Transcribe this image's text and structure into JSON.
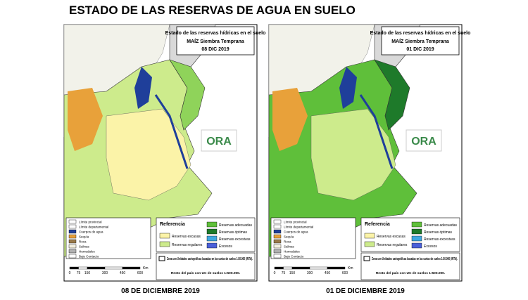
{
  "title": "ESTADO DE LAS RESERVAS DE AGUA EN SUELO",
  "maps": [
    {
      "box_title": "Estado de las reservas hídricas en el suelo",
      "crop": "MAÍZ Siembra Temprana",
      "date": "08 DIC 2019",
      "caption": "08 DE DICIEMBRE 2019"
    },
    {
      "box_title": "Estado de las reservas hídricas en el suelo",
      "crop": "MAÍZ Siembra Temprana",
      "date": "01 DIC 2019",
      "caption": "01 DE DICIEMBRE 2019"
    }
  ],
  "logo": "ORA",
  "legend": {
    "title": "Referencia",
    "left": [
      {
        "label": "Límite provincial",
        "color": "#ffffff"
      },
      {
        "label": "Límite departamental",
        "color": "#ffffff"
      },
      {
        "label": "Cuerpos de agua",
        "color": "#1f3f9a"
      },
      {
        "label": "Sequía",
        "color": "#e8a13a"
      },
      {
        "label": "Roca",
        "color": "#9a7a4a"
      },
      {
        "label": "Salinas",
        "color": "#f4f0e0"
      },
      {
        "label": "Humedales",
        "color": "#b0b0b0"
      },
      {
        "label": "Bajo Contacto",
        "color": "#ffffff"
      }
    ],
    "middle": [
      {
        "label": "Reservas escasas",
        "color": "#fbf3a8"
      },
      {
        "label": "Reservas regulares",
        "color": "#cdeb8c"
      }
    ],
    "right": [
      {
        "label": "Reservas adecuadas",
        "color": "#5fbf3a"
      },
      {
        "label": "Reservas óptimas",
        "color": "#1e7a2a"
      },
      {
        "label": "Reservas excesivas",
        "color": "#3fa8e0"
      },
      {
        "label": "Excesos",
        "color": "#4a5fd8"
      }
    ],
    "note": "Zona con Unidades cartográficas basadas en las cartas de suelos 1:50.000 (INTA).",
    "rest": "Resto del país con UC de suelos 1:500.000."
  },
  "scale": {
    "ticks": [
      0,
      75,
      150,
      300,
      450,
      600
    ],
    "unit": "Km"
  }
}
